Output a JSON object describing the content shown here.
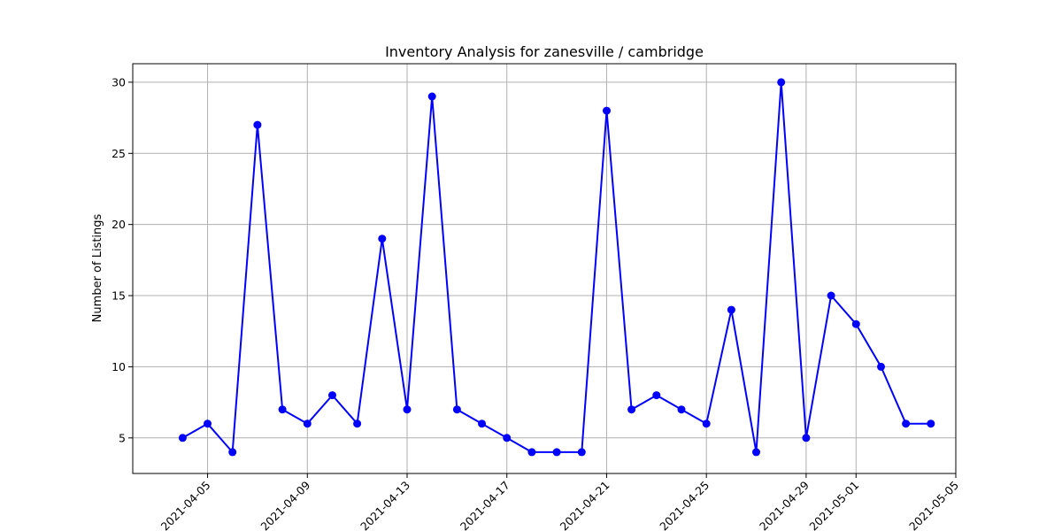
{
  "chart_data": {
    "type": "line",
    "title": "Inventory Analysis for zanesville / cambridge",
    "xlabel": "",
    "ylabel": "Number of Listings",
    "grid": true,
    "legend": "none",
    "line_color": "#0000ff",
    "marker": "circle",
    "xlim": [
      "2021-04-02",
      "2021-05-05"
    ],
    "ylim": [
      2.5,
      31.3
    ],
    "x_ticks": [
      "2021-04-05",
      "2021-04-09",
      "2021-04-13",
      "2021-04-17",
      "2021-04-21",
      "2021-04-25",
      "2021-04-29",
      "2021-05-01",
      "2021-05-05"
    ],
    "y_ticks": [
      5,
      10,
      15,
      20,
      25,
      30
    ],
    "x": [
      "2021-04-04",
      "2021-04-05",
      "2021-04-06",
      "2021-04-07",
      "2021-04-08",
      "2021-04-09",
      "2021-04-10",
      "2021-04-11",
      "2021-04-12",
      "2021-04-13",
      "2021-04-14",
      "2021-04-15",
      "2021-04-16",
      "2021-04-17",
      "2021-04-18",
      "2021-04-19",
      "2021-04-20",
      "2021-04-21",
      "2021-04-22",
      "2021-04-23",
      "2021-04-24",
      "2021-04-25",
      "2021-04-26",
      "2021-04-27",
      "2021-04-28",
      "2021-04-29",
      "2021-04-30",
      "2021-05-01",
      "2021-05-02",
      "2021-05-03",
      "2021-05-04"
    ],
    "values": [
      5,
      6,
      4,
      27,
      7,
      6,
      8,
      6,
      19,
      7,
      29,
      7,
      6,
      5,
      4,
      4,
      4,
      28,
      7,
      8,
      7,
      6,
      14,
      4,
      30,
      5,
      15,
      13,
      10,
      6,
      6
    ]
  }
}
